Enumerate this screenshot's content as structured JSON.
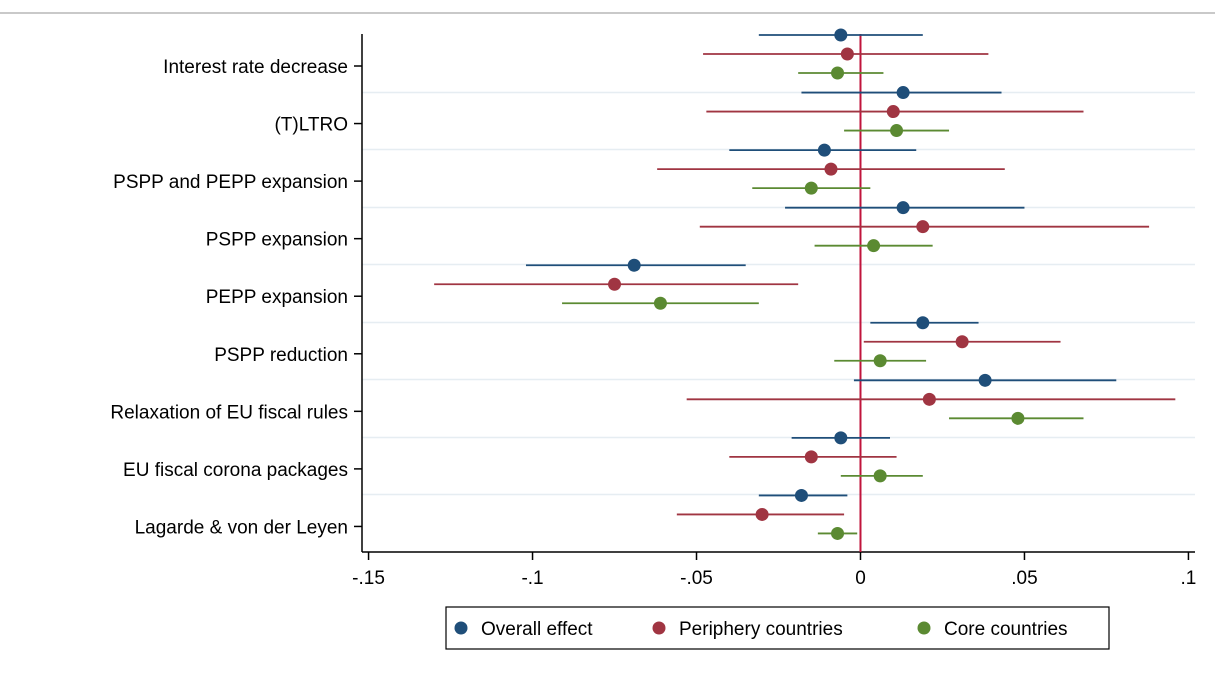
{
  "chart_data": {
    "type": "scatter",
    "subtype": "coefficient-plot",
    "categories": [
      "Interest rate decrease",
      "(T)LTRO",
      "PSPP and PEPP expansion",
      "PSPP expansion",
      "PEPP expansion",
      "PSPP reduction",
      "Relaxation of EU fiscal rules",
      "EU fiscal corona packages",
      "Lagarde & von der Leyen"
    ],
    "series": [
      {
        "name": "Overall effect",
        "color": "#1f4e79",
        "estimates": [
          -0.006,
          0.013,
          -0.011,
          0.013,
          -0.069,
          0.019,
          0.038,
          -0.006,
          -0.018
        ],
        "ci_low": [
          -0.031,
          -0.018,
          -0.04,
          -0.023,
          -0.102,
          0.003,
          -0.002,
          -0.021,
          -0.031
        ],
        "ci_high": [
          0.019,
          0.043,
          0.017,
          0.05,
          -0.035,
          0.036,
          0.078,
          0.009,
          -0.004
        ]
      },
      {
        "name": "Periphery countries",
        "color": "#a03542",
        "estimates": [
          -0.004,
          0.01,
          -0.009,
          0.019,
          -0.075,
          0.031,
          0.021,
          -0.015,
          -0.03
        ],
        "ci_low": [
          -0.048,
          -0.047,
          -0.062,
          -0.049,
          -0.13,
          0.001,
          -0.053,
          -0.04,
          -0.056
        ],
        "ci_high": [
          0.039,
          0.068,
          0.044,
          0.088,
          -0.019,
          0.061,
          0.096,
          0.011,
          -0.005
        ]
      },
      {
        "name": "Core countries",
        "color": "#5b8a32",
        "estimates": [
          -0.007,
          0.011,
          -0.015,
          0.004,
          -0.061,
          0.006,
          0.048,
          0.006,
          -0.007
        ],
        "ci_low": [
          -0.019,
          -0.005,
          -0.033,
          -0.014,
          -0.091,
          -0.008,
          0.027,
          -0.006,
          -0.013
        ],
        "ci_high": [
          0.007,
          0.027,
          0.003,
          0.022,
          -0.031,
          0.02,
          0.068,
          0.019,
          -0.001
        ]
      }
    ],
    "x_ticks": [
      -0.15,
      -0.1,
      -0.05,
      0,
      0.05,
      0.1
    ],
    "x_tick_labels": [
      "-.15",
      "-.1",
      "-.05",
      "0",
      ".05",
      ".1"
    ],
    "xlim": [
      -0.152,
      0.102
    ],
    "reference_line": {
      "x": 0,
      "color": "#c0143c"
    },
    "grid": true,
    "legend_position": "bottom"
  }
}
